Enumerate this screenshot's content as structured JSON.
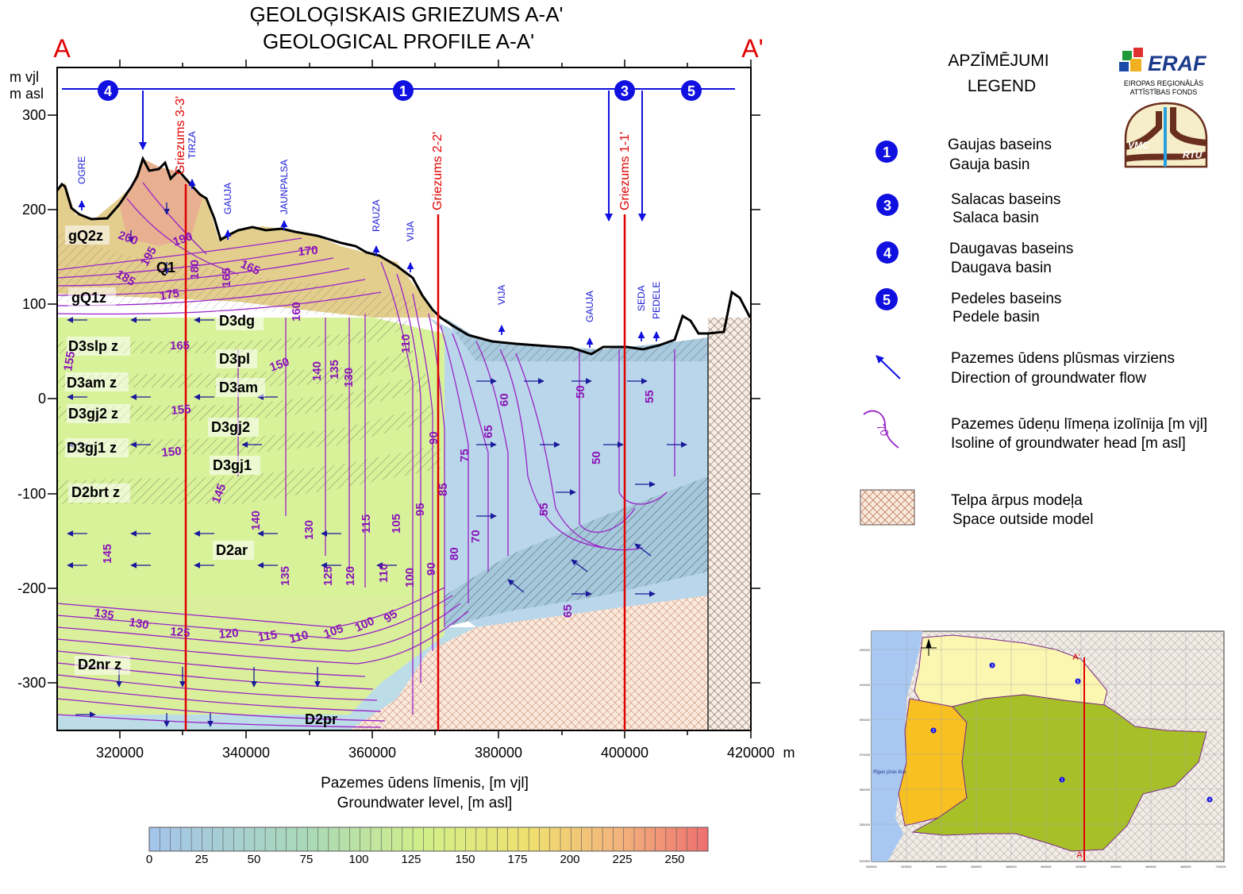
{
  "title": {
    "lv": "ĢEOLOĢISKAIS GRIEZUMS A-A'",
    "en": "GEOLOGICAL PROFILE A-A'"
  },
  "ends": {
    "left": "A",
    "right": "A'"
  },
  "yaxis": {
    "label1": "m vjl",
    "label2": "m asl",
    "ticks": [
      "300",
      "200",
      "100",
      "0",
      "-100",
      "-200",
      "-300"
    ]
  },
  "xaxis": {
    "unit": "m",
    "ticks": [
      "320000",
      "340000",
      "360000",
      "380000",
      "400000",
      "420000"
    ]
  },
  "basins": [
    "4",
    "1",
    "3",
    "5"
  ],
  "sections": [
    "Griezums 3-3'",
    "Griezums 2-2'",
    "Griezums 1-1'"
  ],
  "rivers": [
    "OGRE",
    "TIRZA",
    "GAUJA",
    "JAUNPALSA",
    "RAUZA",
    "VIJA",
    "VIJA",
    "GAUJA",
    "SEDA",
    "PEDELE"
  ],
  "layers": [
    "gQ2z",
    "Q1",
    "gQ1z",
    "D3dg",
    "D3slp z",
    "D3pl",
    "D3am z",
    "D3am",
    "D3gj2 z",
    "D3gj2",
    "D3gj1 z",
    "D3gj1",
    "D2brt z",
    "D2ar",
    "D2nr z",
    "D2pr"
  ],
  "isolines": [
    "200",
    "190",
    "195",
    "185",
    "180",
    "175",
    "165",
    "165",
    "170",
    "160",
    "165",
    "155",
    "150",
    "140",
    "135",
    "130",
    "110",
    "155",
    "150",
    "145",
    "140",
    "130",
    "115",
    "105",
    "95",
    "85",
    "145",
    "135",
    "125",
    "120",
    "110",
    "100",
    "90",
    "80",
    "90",
    "75",
    "65",
    "70",
    "60",
    "50",
    "50",
    "55",
    "55",
    "135",
    "130",
    "125",
    "120",
    "115",
    "110",
    "105",
    "100",
    "95",
    "65"
  ],
  "legend": {
    "title_lv": "APZĪMĒJUMI",
    "title_en": "LEGEND",
    "items": [
      {
        "marker": "1",
        "lv": "Gaujas baseins",
        "en": "Gauja basin"
      },
      {
        "marker": "3",
        "lv": "Salacas baseins",
        "en": "Salaca basin"
      },
      {
        "marker": "4",
        "lv": "Daugavas baseins",
        "en": "Daugava basin"
      },
      {
        "marker": "5",
        "lv": "Pedeles baseins",
        "en": "Pedele basin"
      },
      {
        "marker": "flow-arrow",
        "lv": "Pazemes ūdens plūsmas virziens",
        "en": "Direction of groundwater flow"
      },
      {
        "marker": "isoline",
        "iso_label": "70",
        "lv": "Pazemes ūdeņu līmeņa izolīnija [m vjl]",
        "en": "Isoline of groundwater head [m asl]"
      },
      {
        "marker": "hatch",
        "lv": "Telpa ārpus modeļa",
        "en": "Space outside model"
      }
    ]
  },
  "logo": {
    "name": "ERAF",
    "sub1": "EIROPAS REĢIONĀLĀS",
    "sub2": "ATTĪSTĪBAS FONDS",
    "emblem_left": "VMC",
    "emblem_right": "RTU"
  },
  "colorbar": {
    "title_lv": "Pazemes ūdens līmenis, [m vjl]",
    "title_en": "Groundwater level, [m asl]",
    "ticks": [
      "0",
      "25",
      "50",
      "75",
      "100",
      "125",
      "150",
      "175",
      "200",
      "225",
      "250"
    ]
  },
  "inset": {
    "label_top": "A'",
    "label_bottom": "A",
    "sea_label": "Rīgas jūras līcis",
    "markers": [
      "3",
      "5",
      "2",
      "1",
      "4"
    ],
    "yticks": [
      "430000",
      "410000",
      "390000",
      "370000",
      "350000",
      "330000",
      "310000"
    ],
    "xticks": [
      "500000",
      "520000",
      "540000",
      "560000",
      "580000",
      "600000",
      "620000",
      "640000",
      "660000",
      "680000",
      "700000"
    ]
  },
  "colors": {
    "section_line": "#e00000",
    "isoline": "#8a14b8",
    "basin_marker": "#1010e0",
    "flow_arrow": "#1a1a9a"
  }
}
